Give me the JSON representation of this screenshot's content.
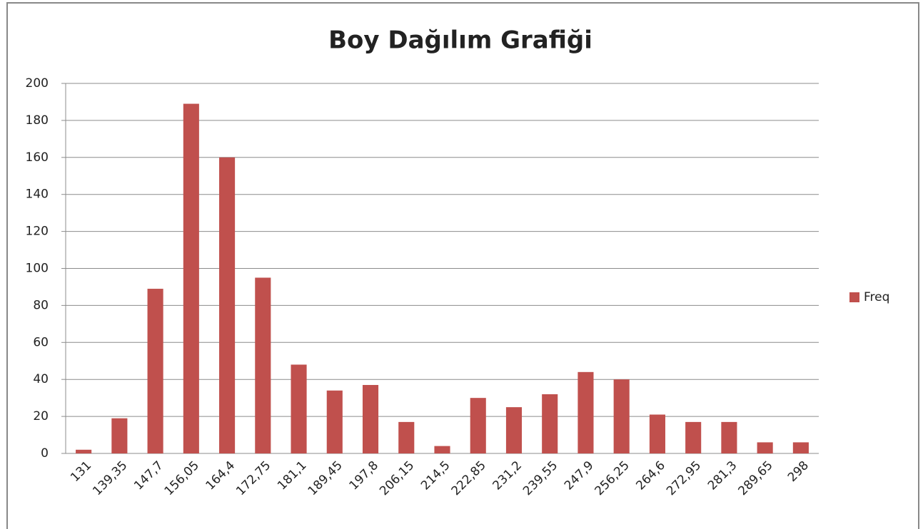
{
  "chart_data": {
    "type": "bar",
    "title": "Boy Dağılım Grafiği",
    "categories": [
      "131",
      "139,35",
      "147,7",
      "156,05",
      "164,4",
      "172,75",
      "181,1",
      "189,45",
      "197,8",
      "206,15",
      "214,5",
      "222,85",
      "231,2",
      "239,55",
      "247,9",
      "256,25",
      "264,6",
      "272,95",
      "281,3",
      "289,65",
      "298"
    ],
    "series": [
      {
        "name": "Freq",
        "color": "#c0504d",
        "values": [
          2,
          19,
          89,
          189,
          160,
          95,
          48,
          34,
          37,
          17,
          4,
          30,
          25,
          32,
          44,
          40,
          21,
          17,
          17,
          6,
          6
        ]
      }
    ],
    "ylim": [
      0,
      200
    ],
    "yticks": [
      0,
      20,
      40,
      60,
      80,
      100,
      120,
      140,
      160,
      180,
      200
    ],
    "grid": true,
    "legend": "right"
  }
}
